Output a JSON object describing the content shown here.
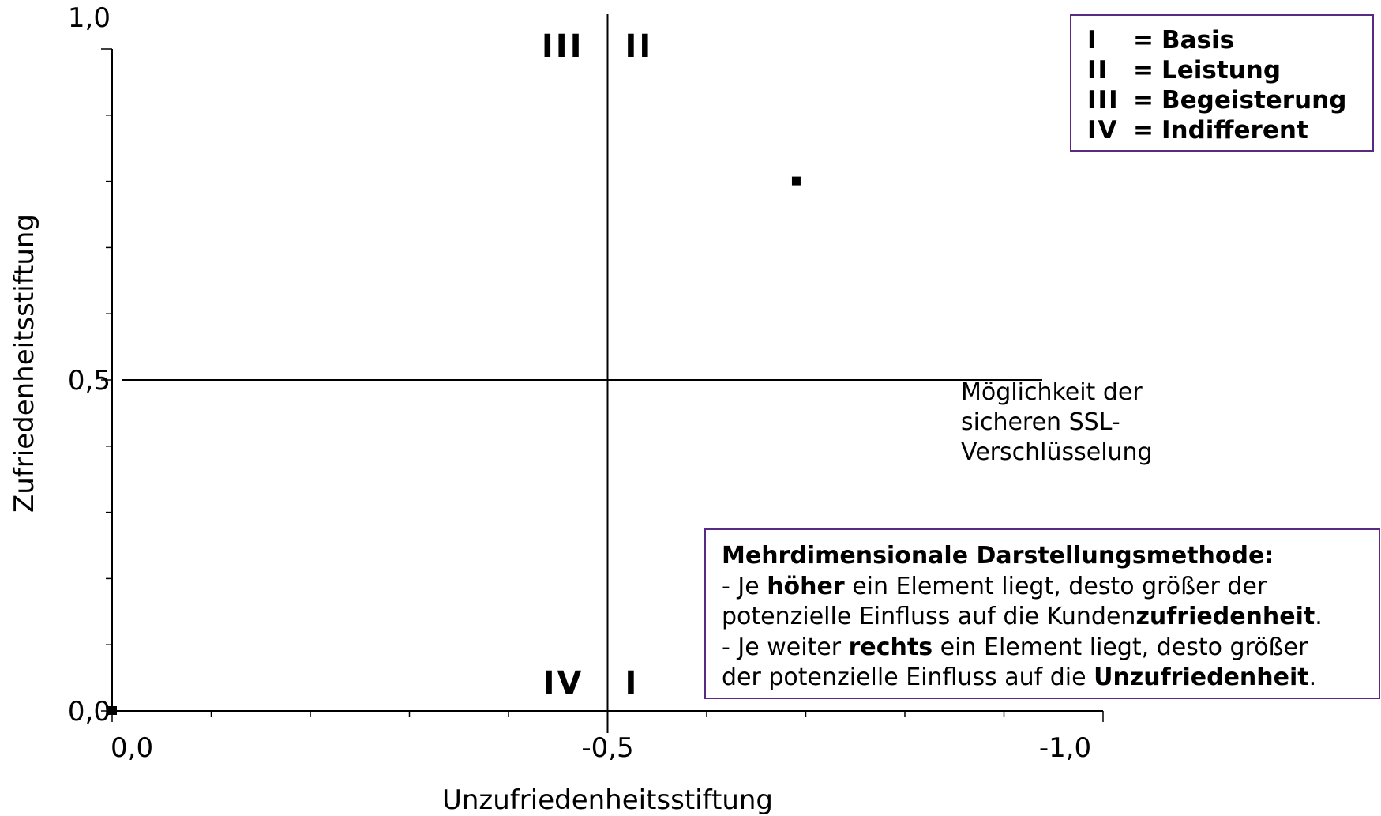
{
  "chart_data": {
    "type": "scatter",
    "xlabel": "Unzufriedenheitsstiftung",
    "ylabel": "Zufriedenheitsstiftung",
    "xlim": [
      0.0,
      -1.0
    ],
    "ylim": [
      0.0,
      1.0
    ],
    "x_ticks": [
      "0,0",
      "-0,5",
      "-1,0"
    ],
    "y_ticks": [
      "0,0",
      "0,5",
      "1,0"
    ],
    "x_tick_values": [
      0.0,
      -0.5,
      -1.0
    ],
    "y_tick_values": [
      0.0,
      0.5,
      1.0
    ],
    "x_divider": -0.5,
    "y_divider": 0.5,
    "grid": false,
    "series": [
      {
        "points": [
          {
            "x": -0.69,
            "y": 0.8
          },
          {
            "x": 0.0,
            "y": 0.0
          }
        ]
      }
    ],
    "point_annotation": {
      "lines": [
        "Möglichkeit der",
        "sicheren SSL-",
        "Verschlüsselung"
      ]
    },
    "quadrant_labels": {
      "top_left": "III",
      "top_right": "II",
      "bottom_left": "IV",
      "bottom_right": "I"
    },
    "legend": {
      "placement": "top-right",
      "entries": [
        {
          "code": "I",
          "eq": "=",
          "label": "Basis"
        },
        {
          "code": "II",
          "eq": "=",
          "label": "Leistung"
        },
        {
          "code": "III",
          "eq": "=",
          "label": "Begeisterung"
        },
        {
          "code": "IV",
          "eq": "=",
          "label": "Indifferent"
        }
      ]
    },
    "note": {
      "title": "Mehrdimensionale Darstellungsmethode:",
      "line1": {
        "pre": "- Je ",
        "bold": "höher",
        "post": " ein Element liegt, desto größer der"
      },
      "line2": {
        "pre": "potenzielle Einfluss auf die Kunden",
        "bold": "zufriedenheit",
        "post": "."
      },
      "line3": {
        "pre": "- Je weiter ",
        "bold": "rechts",
        "post": " ein Element liegt, desto größer"
      },
      "line4": {
        "pre": "der potenzielle Einfluss auf die ",
        "bold": "Unzufriedenheit",
        "post": "."
      }
    },
    "colors": {
      "box_border": "#5a2a82",
      "lines": "#000000",
      "background": "#ffffff"
    }
  }
}
